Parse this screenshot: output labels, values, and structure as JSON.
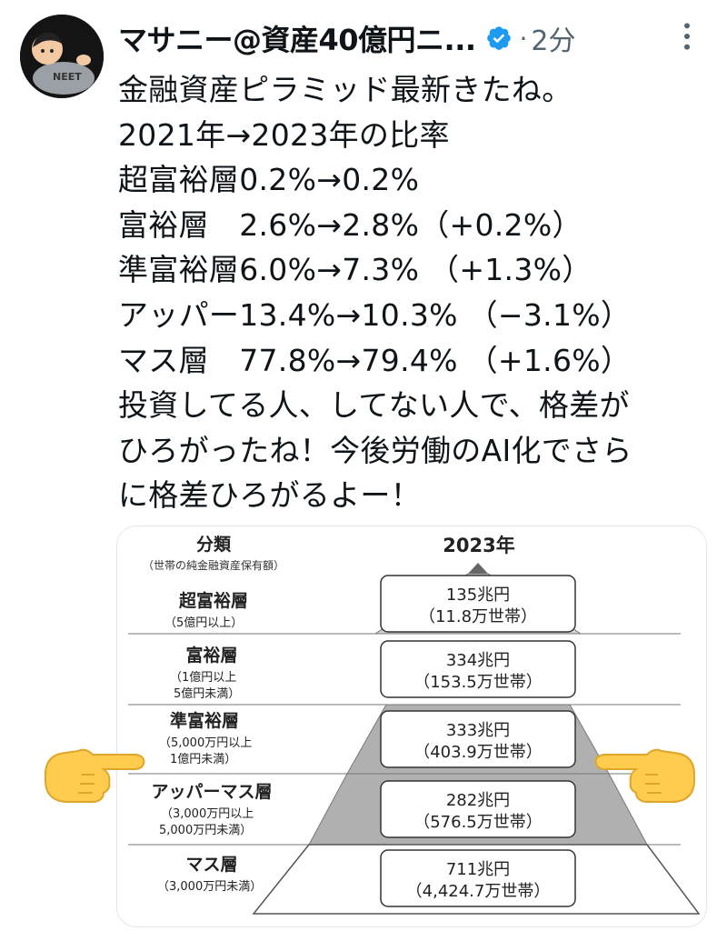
{
  "tweet": {
    "author": "マサニー@資産40億円ニ...",
    "separator": "·",
    "time": "2分",
    "lines": [
      "金融資産ピラミッド最新きたね。",
      "2021年→2023年の比率",
      "超富裕層0.2%→0.2%",
      "富裕層　2.6%→2.8%（+0.2%）",
      "準富裕層6.0%→7.3% （+1.3%）",
      "アッパー13.4%→10.3% （−3.1%）",
      "マス層　77.8%→79.4% （+1.6%）",
      "投資してる人、してない人で、格差が",
      "ひろがったね！今後労働のAI化でさら",
      "に格差ひろがるよー！"
    ]
  },
  "pyramid": {
    "header_category": "分類",
    "header_sub": "（世帯の純金融資産保有額）",
    "header_year": "2023年",
    "tiers": [
      {
        "name": "超富裕層",
        "range": [
          "（5億円以上）"
        ],
        "assets": "135兆円",
        "households": "（11.8万世帯）"
      },
      {
        "name": "富裕層",
        "range": [
          "（1億円以上",
          "5億円未満）"
        ],
        "assets": "334兆円",
        "households": "（153.5万世帯）"
      },
      {
        "name": "準富裕層",
        "range": [
          "（5,000万円以上",
          "1億円未満）"
        ],
        "assets": "333兆円",
        "households": "（403.9万世帯）"
      },
      {
        "name": "アッパーマス層",
        "range": [
          "（3,000万円以上",
          "5,000万円未満）"
        ],
        "assets": "282兆円",
        "households": "（576.5万世帯）"
      },
      {
        "name": "マス層",
        "range": [
          "（3,000万円未満）"
        ],
        "assets": "711兆円",
        "households": "（4,424.7万世帯）"
      }
    ]
  },
  "colors": {
    "verified": "#1d9bf0",
    "muted": "#536471",
    "tier_fill": "#b0b0b0",
    "tier_fill_top": "#d2d2d2",
    "hand": "#ffcc4d"
  }
}
